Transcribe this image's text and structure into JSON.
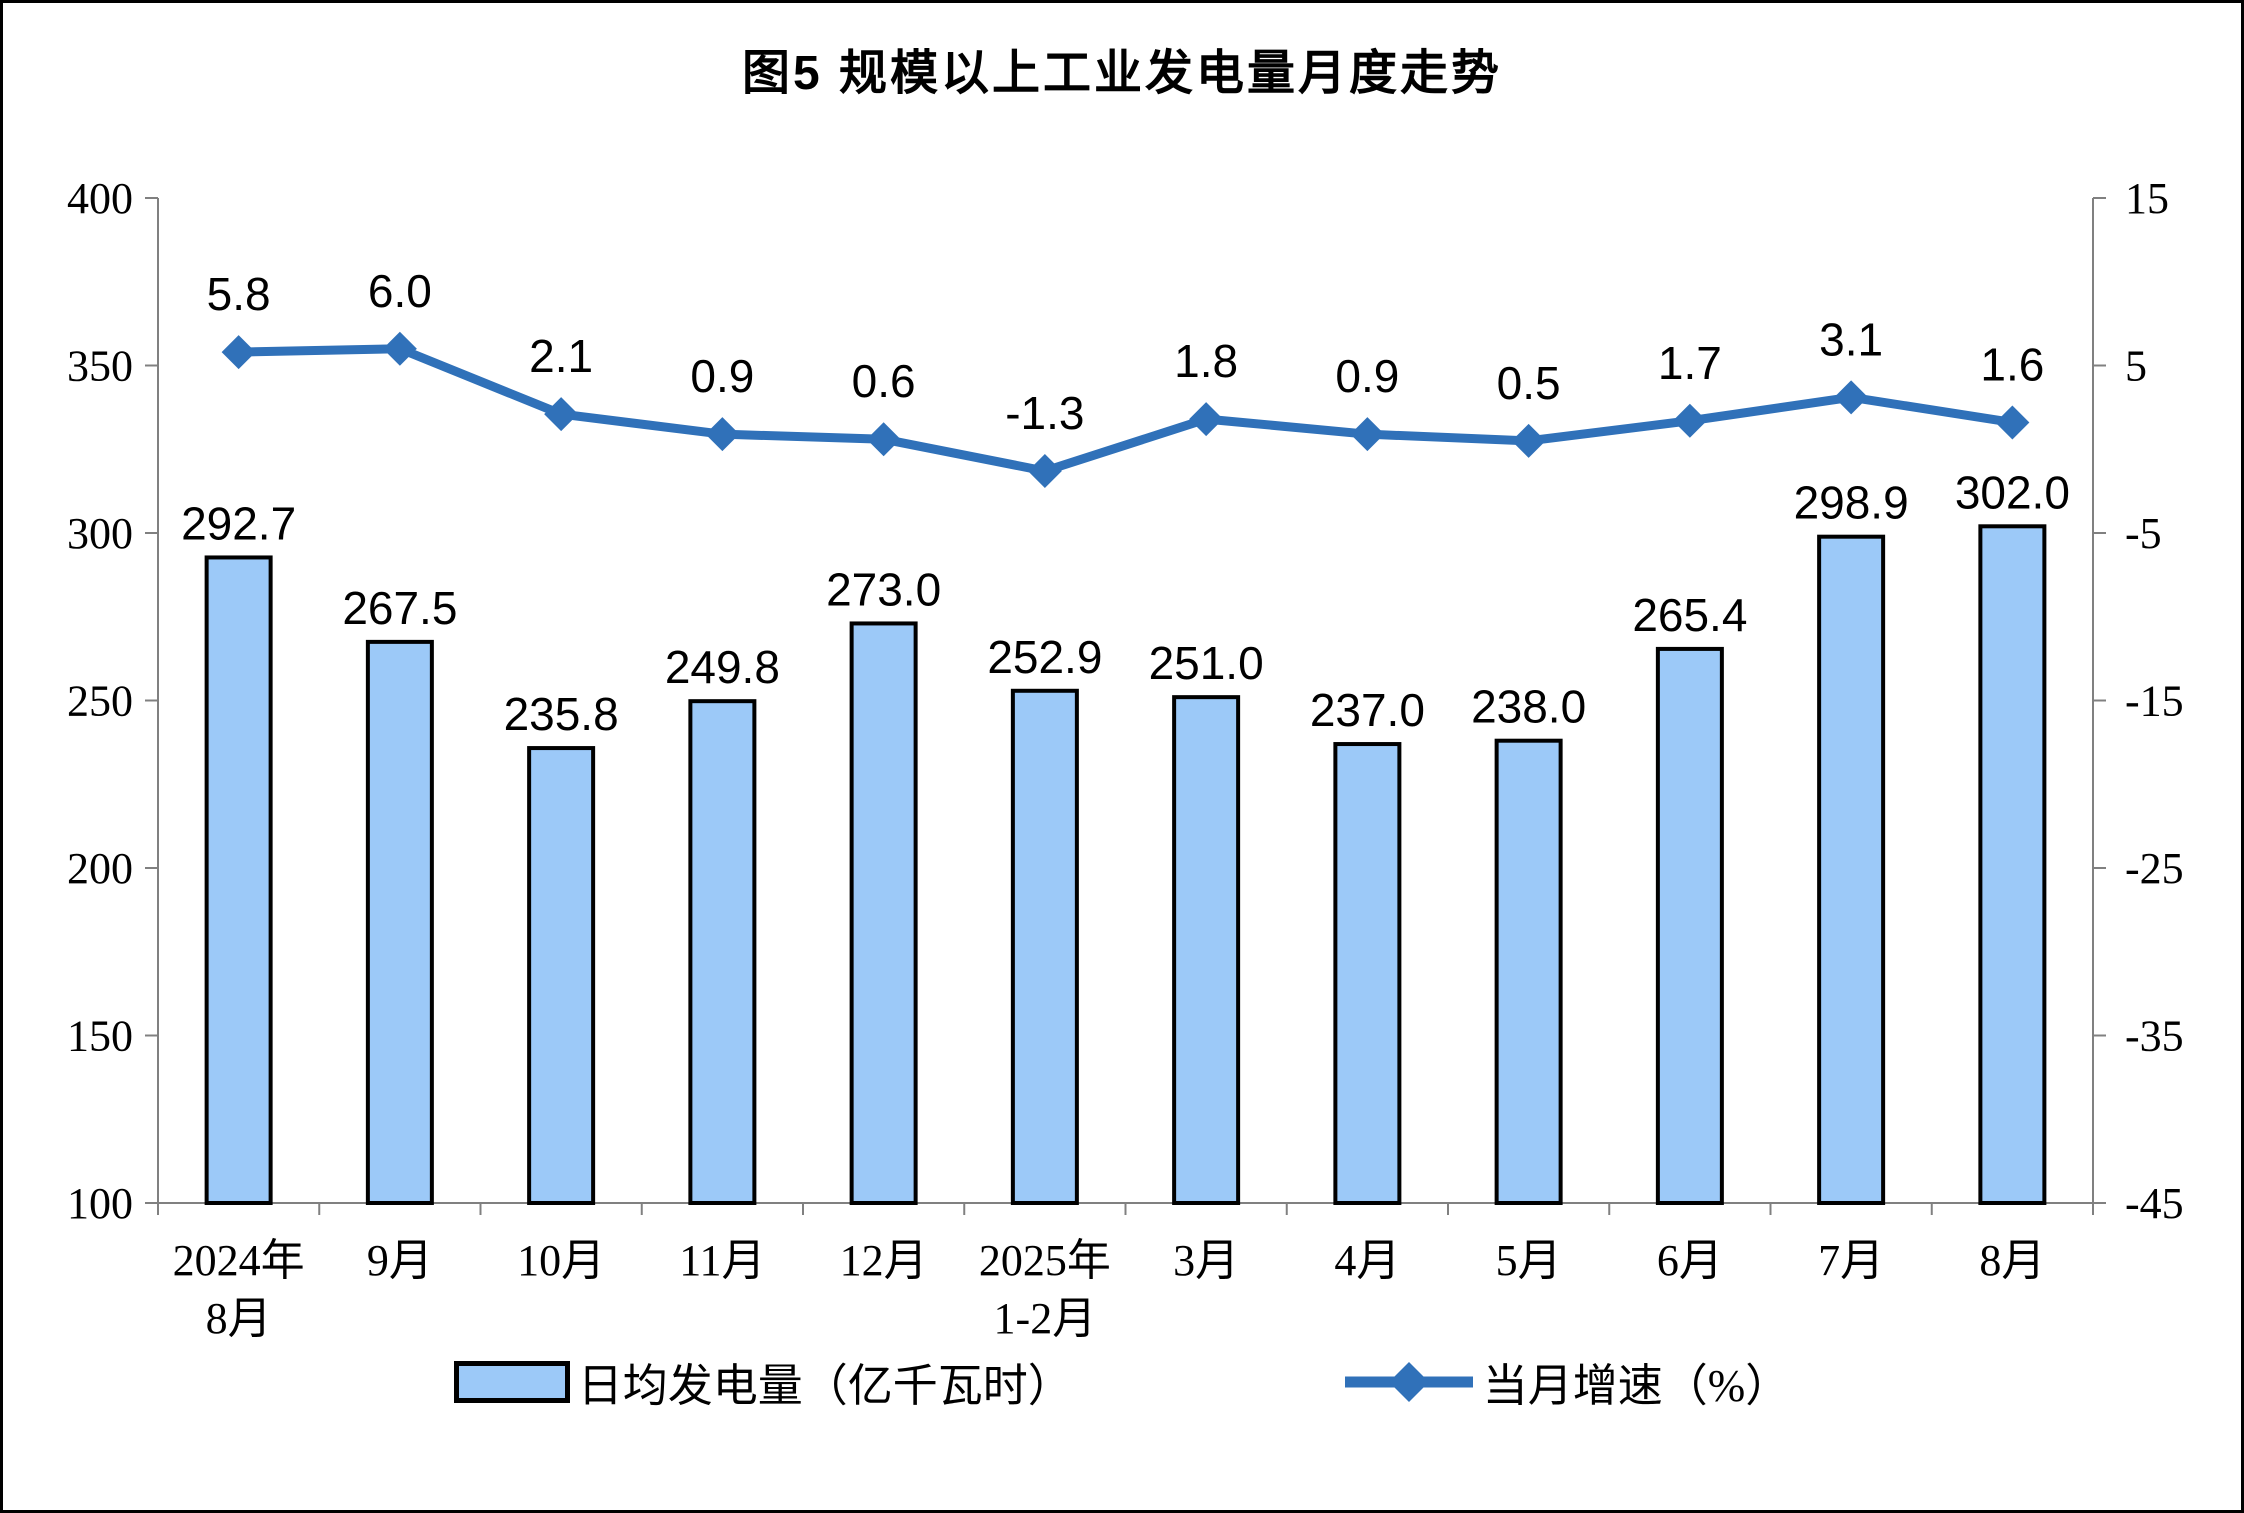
{
  "chart_data": {
    "type": "bar+line combo",
    "title": "图5 规模以上工业发电量月度走势",
    "categories": [
      "2024年\n8月",
      "9月",
      "10月",
      "11月",
      "12月",
      "2025年\n1-2月",
      "3月",
      "4月",
      "5月",
      "6月",
      "7月",
      "8月"
    ],
    "series": [
      {
        "name": "日均发电量（亿千瓦时）",
        "type": "bar",
        "axis": "left",
        "values": [
          292.7,
          267.5,
          235.8,
          249.8,
          273.0,
          252.9,
          251.0,
          237.0,
          238.0,
          265.4,
          298.9,
          302.0
        ]
      },
      {
        "name": "当月增速（%）",
        "type": "line",
        "axis": "right",
        "values": [
          5.8,
          6.0,
          2.1,
          0.9,
          0.6,
          -1.3,
          1.8,
          0.9,
          0.5,
          1.7,
          3.1,
          1.6
        ]
      }
    ],
    "left_axis": {
      "min": 100,
      "max": 400,
      "step": 50,
      "ticks": [
        400,
        350,
        300,
        250,
        200,
        150,
        100
      ]
    },
    "right_axis": {
      "min": -45,
      "max": 15,
      "step": 10,
      "ticks": [
        15,
        5,
        -5,
        -15,
        -25,
        -35,
        -45
      ]
    },
    "legend": {
      "position": "bottom",
      "bar_label": "日均发电量（亿千瓦时）",
      "line_label": "当月增速（%）"
    },
    "colors": {
      "bar_fill": "#9CC9F8",
      "bar_stroke": "#000000",
      "line": "#3071B9",
      "axis": "#808080",
      "text": "#000000"
    },
    "grid": false,
    "value_labels": true
  }
}
